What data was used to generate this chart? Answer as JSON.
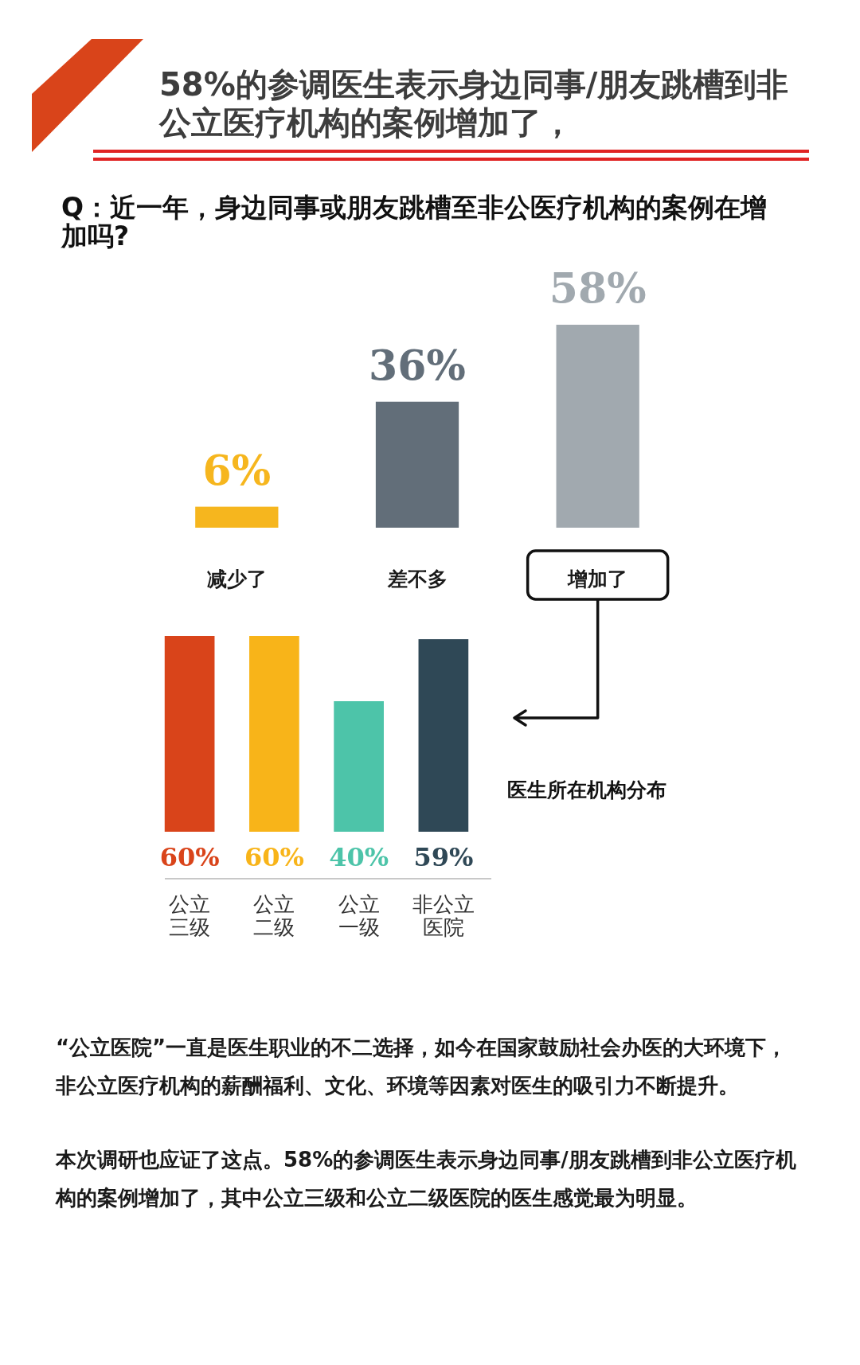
{
  "chart_data": [
    {
      "type": "bar",
      "title": "58%的参调医生表示身边同事/朋友跳槽到非公立医疗机构的案例增加了，",
      "subtitle": "Q：近一年，身边同事或朋友跳槽至非公医疗机构的案例在增加吗?",
      "categories": [
        "减少了",
        "差不多",
        "增加了"
      ],
      "values": [
        6,
        36,
        58
      ],
      "colors": [
        "#f6b61e",
        "#626e79",
        "#a1a9af"
      ],
      "value_labels": [
        "6%",
        "36%",
        "58%"
      ]
    },
    {
      "type": "bar",
      "categories": [
        "公立三级",
        "公立二级",
        "公立一级",
        "非公立医院"
      ],
      "values": [
        60,
        60,
        40,
        59
      ],
      "colors": [
        "#d9441a",
        "#f8b419",
        "#4dc4a9",
        "#2f4856"
      ],
      "value_labels": [
        "60%",
        "60%",
        "40%",
        "59%"
      ],
      "annotations": [
        "医生所在机构分布",
        "“公立医院”一直是医生职业的不二选择，如今在国家鼓励社会办医的大环境下，非公立医疗机构的薪酬福利、文化、环境等因素对医生的吸引力不断提升。",
        "本次调研也应证了这点。58%的参调医生表示身边同事/朋友跳槽到非公立医疗机构的案例增加了，其中公立三级和公立二级医院的医生感觉最为明显。"
      ]
    }
  ]
}
